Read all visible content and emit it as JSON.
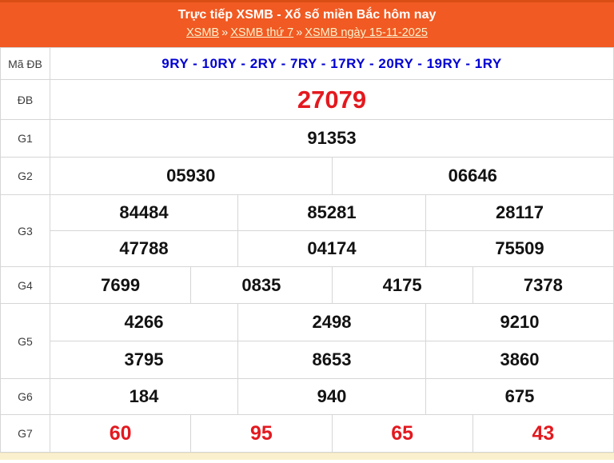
{
  "header": {
    "title": "Trực tiếp XSMB - Xổ số miền Bắc hôm nay",
    "breadcrumb": {
      "separator": "»",
      "items": [
        {
          "label": "XSMB"
        },
        {
          "label": "XSMB thứ 7"
        },
        {
          "label": "XSMB ngày 15-11-2025"
        }
      ]
    }
  },
  "results": {
    "ma_db": {
      "label": "Mã ĐB",
      "value": "9RY - 10RY - 2RY - 7RY - 17RY - 20RY - 19RY - 1RY"
    },
    "db": {
      "label": "ĐB",
      "value": "27079"
    },
    "g1": {
      "label": "G1",
      "values": [
        "91353"
      ]
    },
    "g2": {
      "label": "G2",
      "values": [
        "05930",
        "06646"
      ]
    },
    "g3": {
      "label": "G3",
      "rows": [
        [
          "84484",
          "85281",
          "28117"
        ],
        [
          "47788",
          "04174",
          "75509"
        ]
      ]
    },
    "g4": {
      "label": "G4",
      "values": [
        "7699",
        "0835",
        "4175",
        "7378"
      ]
    },
    "g5": {
      "label": "G5",
      "rows": [
        [
          "4266",
          "2498",
          "9210"
        ],
        [
          "3795",
          "8653",
          "3860"
        ]
      ]
    },
    "g6": {
      "label": "G6",
      "values": [
        "184",
        "940",
        "675"
      ]
    },
    "g7": {
      "label": "G7",
      "values": [
        "60",
        "95",
        "65",
        "43"
      ]
    }
  },
  "colors": {
    "header_background": "#F15A22",
    "header_top_border": "#D94E15",
    "title_text": "#FFFFFF",
    "breadcrumb_link": "#FBF3CF",
    "code_blue": "#0101D3",
    "prize_red": "#E3191F",
    "number_black": "#121212",
    "table_border": "#D6D6D6",
    "bottom_strip": "#FAF0CD"
  }
}
